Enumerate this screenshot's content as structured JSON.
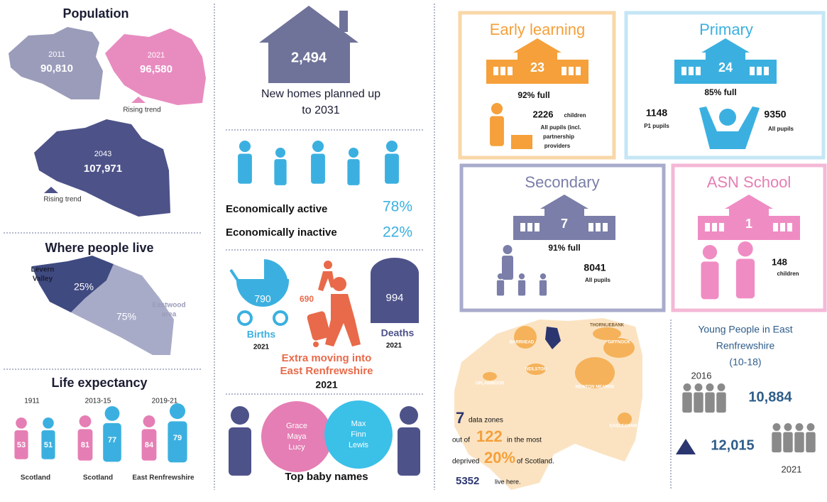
{
  "population": {
    "title": "Population",
    "maps": [
      {
        "year": "2011",
        "value": "90,810"
      },
      {
        "year": "2021",
        "value": "96,580",
        "trend": "Rising trend"
      },
      {
        "year": "2043",
        "value": "107,971",
        "trend": "Rising trend"
      }
    ]
  },
  "where_people_live": {
    "title": "Where people live",
    "areas": [
      {
        "name": [
          "Levern",
          "Valley"
        ],
        "share": "25%"
      },
      {
        "name": [
          "Eastwood",
          "area"
        ],
        "share": "75%"
      }
    ]
  },
  "life_expectancy": {
    "title": "Life expectancy",
    "groups": [
      {
        "period": "1911",
        "female": "53",
        "male": "51",
        "area": "Scotland"
      },
      {
        "period": "2013-15",
        "female": "81",
        "male": "77",
        "area": "Scotland"
      },
      {
        "period": "2019-21",
        "female": "84",
        "male": "79",
        "area": "East Renfrewshire"
      }
    ]
  },
  "homes": {
    "value": "2,494",
    "caption": [
      "New homes planned up",
      "to 2031"
    ]
  },
  "economy": {
    "rows": [
      {
        "label": "Economically active",
        "value": "78%"
      },
      {
        "label": "Economically inactive",
        "value": "22%"
      }
    ]
  },
  "population_change": {
    "births": {
      "value": "790",
      "label": "Births",
      "year": "2021"
    },
    "moving": {
      "value": "690",
      "caption": [
        "Extra moving into",
        "East Renfrewshire"
      ],
      "year": "2021"
    },
    "deaths": {
      "value": "994",
      "label": "Deaths",
      "year": "2021"
    }
  },
  "baby_names": {
    "title": "Top baby names",
    "girls": [
      "Grace",
      "Maya",
      "Lucy"
    ],
    "boys": [
      "Max",
      "Finn",
      "Lewis"
    ]
  },
  "schools": [
    {
      "name": "Early learning",
      "count": "23",
      "full": "92% full",
      "stats": [
        {
          "value": "2226",
          "label": [
            "children"
          ]
        },
        {
          "label": [
            "All pupils (incl.",
            "partnership",
            "providers"
          ]
        }
      ]
    },
    {
      "name": "Primary",
      "count": "24",
      "full": "85% full",
      "stats": [
        {
          "value": "1148",
          "label": [
            "P1 pupils"
          ]
        },
        {
          "value": "9350",
          "label": [
            "All pupils"
          ]
        }
      ]
    },
    {
      "name": "Secondary",
      "count": "7",
      "full": "91% full",
      "stats": [
        {
          "value": "8041",
          "label": [
            "All pupils"
          ]
        }
      ]
    },
    {
      "name": "ASN School",
      "count": "1",
      "stats": [
        {
          "value": "148",
          "label": [
            "children"
          ]
        }
      ]
    }
  ],
  "deprivation": {
    "towns": [
      "THORNLIEBANK",
      "BARRHEAD",
      "GIFFNOCK",
      "NEILSTON",
      "UPLAWMOOR",
      "NEWTON MEARNS",
      "EAGLESHAM"
    ],
    "zones": "7",
    "zones_text": "data zones",
    "out_of": "out of",
    "total": "122",
    "in_most": "in the most",
    "deprived": "deprived",
    "share": "20%",
    "of": "of Scotland.",
    "people": "5352",
    "live": "live here."
  },
  "young_people": {
    "title": [
      "Young People in East",
      "Renfrewshire",
      "(10-18)"
    ],
    "years": [
      {
        "year": "2016",
        "value": "10,884"
      },
      {
        "year": "2021",
        "value": "12,015"
      }
    ]
  }
}
